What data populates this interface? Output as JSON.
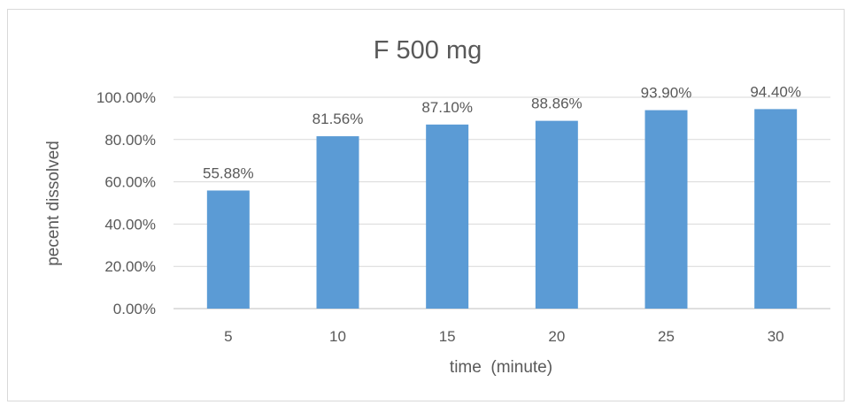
{
  "chart_data": {
    "type": "bar",
    "title": "F 500 mg",
    "xlabel": "time  (minute)",
    "ylabel": "pecent dissolved",
    "categories": [
      "5",
      "10",
      "15",
      "20",
      "25",
      "30"
    ],
    "values": [
      55.88,
      81.56,
      87.1,
      88.86,
      93.9,
      94.4
    ],
    "data_labels": [
      "55.88%",
      "81.56%",
      "87.10%",
      "88.86%",
      "93.90%",
      "94.40%"
    ],
    "ylim": [
      0,
      100
    ],
    "yticks": [
      0,
      20,
      40,
      60,
      80,
      100
    ],
    "ytick_labels": [
      "0.00%",
      "20.00%",
      "40.00%",
      "60.00%",
      "80.00%",
      "100.00%"
    ],
    "bar_color": "#5B9BD5",
    "gridlines": true,
    "legend": "none"
  }
}
